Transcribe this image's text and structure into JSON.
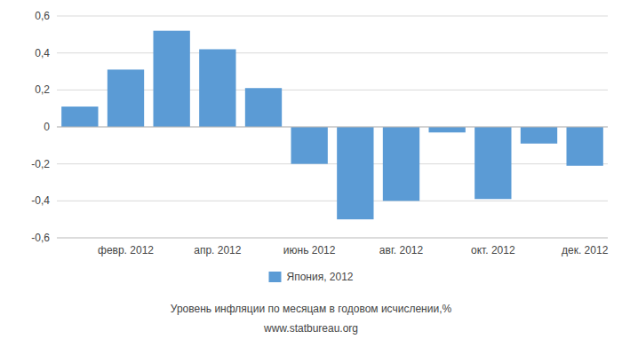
{
  "chart_data": {
    "type": "bar",
    "categories": [
      null,
      "февр. 2012",
      null,
      "апр. 2012",
      null,
      "июнь 2012",
      null,
      "авг. 2012",
      null,
      "окт. 2012",
      null,
      "дек. 2012"
    ],
    "series": [
      {
        "name": "Япония, 2012",
        "color": "#5b9bd5",
        "values": [
          0.11,
          0.31,
          0.52,
          0.42,
          0.21,
          -0.2,
          -0.5,
          -0.4,
          -0.03,
          -0.39,
          -0.09,
          -0.21
        ]
      }
    ],
    "ylim": [
      -0.6,
      0.6
    ],
    "yticks": [
      {
        "value": -0.6,
        "label": "-0,6"
      },
      {
        "value": -0.4,
        "label": "-0,4"
      },
      {
        "value": -0.2,
        "label": "-0,2"
      },
      0,
      {
        "value": 0.2,
        "label": "0,2"
      },
      {
        "value": 0.4,
        "label": "0,4"
      },
      {
        "value": 0.6,
        "label": "0,6"
      }
    ],
    "grid": true,
    "legend": "bottom",
    "annotations": [
      "Уровень инфляции по месяцам в годовом исчислении,%",
      "www.statbureau.org"
    ]
  }
}
